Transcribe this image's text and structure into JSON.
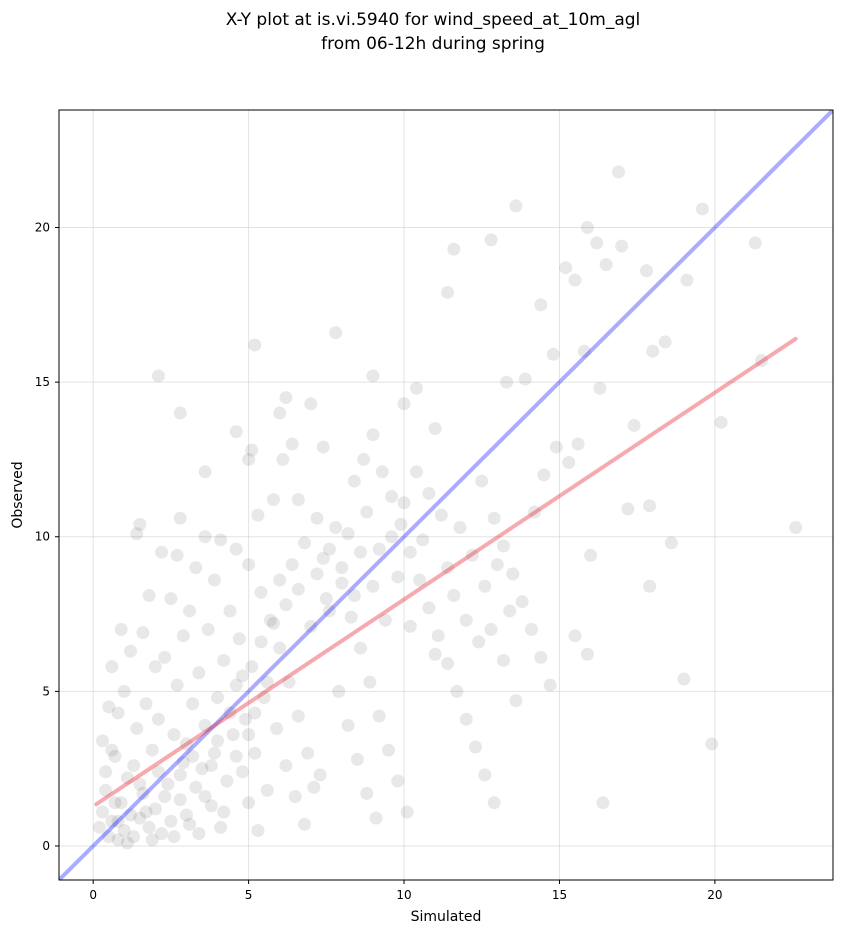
{
  "chart_data": {
    "type": "scatter",
    "title_line1": "X-Y plot at is.vi.5940 for wind_speed_at_10m_agl",
    "title_line2": "from 06-12h during spring",
    "xlabel": "Simulated",
    "ylabel": "Observed",
    "xlim": [
      -1.1,
      23.8
    ],
    "ylim": [
      -1.1,
      23.8
    ],
    "xticks": [
      0,
      5,
      10,
      15,
      20
    ],
    "yticks": [
      0,
      5,
      10,
      15,
      20
    ],
    "xtick_labels": [
      "0",
      "5",
      "10",
      "15",
      "20"
    ],
    "ytick_labels": [
      "0",
      "5",
      "10",
      "15",
      "20"
    ],
    "grid": true,
    "point_color": "#000000",
    "point_alpha": 0.09,
    "identity_line": {
      "from": [
        -1.1,
        -1.1
      ],
      "to": [
        23.8,
        23.8
      ],
      "color": "#0000ff",
      "alpha": 0.33
    },
    "fit_line": {
      "from": [
        0.1,
        1.35
      ],
      "to": [
        22.6,
        16.4
      ],
      "color": "#e8202a",
      "alpha": 0.38
    },
    "points": [
      [
        0.5,
        0.3
      ],
      [
        0.6,
        0.8
      ],
      [
        0.8,
        0.2
      ],
      [
        1.0,
        0.5
      ],
      [
        1.2,
        1.0
      ],
      [
        0.9,
        1.4
      ],
      [
        0.4,
        1.8
      ],
      [
        1.1,
        2.2
      ],
      [
        1.5,
        0.9
      ],
      [
        1.8,
        0.6
      ],
      [
        2.0,
        1.2
      ],
      [
        2.2,
        0.4
      ],
      [
        2.5,
        0.8
      ],
      [
        1.6,
        1.7
      ],
      [
        1.3,
        2.6
      ],
      [
        0.7,
        2.9
      ],
      [
        0.3,
        3.4
      ],
      [
        1.9,
        3.1
      ],
      [
        2.4,
        2.0
      ],
      [
        2.8,
        1.5
      ],
      [
        3.1,
        0.7
      ],
      [
        3.3,
        1.9
      ],
      [
        2.9,
        2.7
      ],
      [
        2.6,
        3.6
      ],
      [
        1.4,
        3.8
      ],
      [
        0.8,
        4.3
      ],
      [
        1.0,
        5.0
      ],
      [
        1.7,
        4.6
      ],
      [
        2.1,
        4.1
      ],
      [
        3.0,
        3.3
      ],
      [
        3.5,
        2.5
      ],
      [
        3.8,
        1.3
      ],
      [
        4.1,
        0.6
      ],
      [
        4.3,
        2.1
      ],
      [
        3.9,
        3.0
      ],
      [
        3.6,
        3.9
      ],
      [
        3.2,
        4.6
      ],
      [
        2.7,
        5.2
      ],
      [
        2.0,
        5.8
      ],
      [
        1.2,
        6.3
      ],
      [
        0.6,
        5.8
      ],
      [
        0.9,
        7.0
      ],
      [
        1.6,
        6.9
      ],
      [
        2.3,
        6.1
      ],
      [
        2.9,
        6.8
      ],
      [
        3.4,
        5.6
      ],
      [
        4.0,
        4.8
      ],
      [
        4.5,
        3.6
      ],
      [
        4.8,
        2.4
      ],
      [
        5.0,
        1.4
      ],
      [
        5.3,
        0.5
      ],
      [
        5.6,
        1.8
      ],
      [
        5.2,
        3.0
      ],
      [
        4.9,
        4.1
      ],
      [
        4.6,
        5.2
      ],
      [
        4.2,
        6.0
      ],
      [
        3.7,
        7.0
      ],
      [
        3.1,
        7.6
      ],
      [
        2.5,
        8.0
      ],
      [
        1.8,
        8.1
      ],
      [
        1.4,
        10.1
      ],
      [
        1.5,
        10.4
      ],
      [
        2.2,
        9.5
      ],
      [
        2.7,
        9.4
      ],
      [
        3.3,
        9.0
      ],
      [
        3.9,
        8.6
      ],
      [
        4.4,
        7.6
      ],
      [
        4.7,
        6.7
      ],
      [
        5.1,
        5.8
      ],
      [
        5.5,
        4.8
      ],
      [
        5.9,
        3.8
      ],
      [
        6.2,
        2.6
      ],
      [
        6.5,
        1.6
      ],
      [
        6.8,
        0.7
      ],
      [
        7.1,
        1.9
      ],
      [
        6.9,
        3.0
      ],
      [
        6.6,
        4.2
      ],
      [
        6.3,
        5.3
      ],
      [
        6.0,
        6.4
      ],
      [
        5.7,
        7.3
      ],
      [
        5.4,
        8.2
      ],
      [
        5.0,
        9.1
      ],
      [
        4.6,
        9.6
      ],
      [
        4.1,
        9.9
      ],
      [
        3.6,
        10.0
      ],
      [
        2.8,
        10.6
      ],
      [
        5.3,
        10.7
      ],
      [
        5.8,
        11.2
      ],
      [
        6.1,
        12.5
      ],
      [
        6.4,
        13.0
      ],
      [
        5.1,
        12.8
      ],
      [
        5.0,
        12.5
      ],
      [
        5.2,
        16.2
      ],
      [
        2.1,
        15.2
      ],
      [
        2.8,
        14.0
      ],
      [
        3.6,
        12.1
      ],
      [
        4.6,
        13.4
      ],
      [
        6.2,
        14.5
      ],
      [
        6.0,
        14.0
      ],
      [
        7.0,
        14.3
      ],
      [
        7.4,
        12.9
      ],
      [
        7.8,
        16.6
      ],
      [
        6.6,
        11.2
      ],
      [
        7.2,
        10.6
      ],
      [
        7.6,
        9.6
      ],
      [
        8.0,
        8.5
      ],
      [
        8.3,
        7.4
      ],
      [
        8.6,
        6.4
      ],
      [
        8.9,
        5.3
      ],
      [
        9.2,
        4.2
      ],
      [
        9.5,
        3.1
      ],
      [
        9.8,
        2.1
      ],
      [
        10.1,
        1.1
      ],
      [
        7.5,
        8.0
      ],
      [
        7.9,
        5.0
      ],
      [
        8.2,
        3.9
      ],
      [
        8.5,
        2.8
      ],
      [
        8.8,
        1.7
      ],
      [
        9.1,
        0.9
      ],
      [
        7.3,
        2.3
      ],
      [
        8.4,
        11.8
      ],
      [
        8.7,
        12.5
      ],
      [
        9.0,
        13.3
      ],
      [
        9.3,
        12.1
      ],
      [
        9.6,
        11.3
      ],
      [
        9.9,
        10.4
      ],
      [
        10.2,
        9.5
      ],
      [
        10.5,
        8.6
      ],
      [
        10.8,
        7.7
      ],
      [
        11.1,
        6.8
      ],
      [
        11.4,
        5.9
      ],
      [
        11.7,
        5.0
      ],
      [
        12.0,
        4.1
      ],
      [
        12.3,
        3.2
      ],
      [
        12.6,
        2.3
      ],
      [
        12.9,
        1.4
      ],
      [
        9.0,
        15.2
      ],
      [
        10.0,
        14.3
      ],
      [
        10.4,
        14.8
      ],
      [
        11.0,
        13.5
      ],
      [
        11.4,
        17.9
      ],
      [
        11.6,
        19.3
      ],
      [
        12.8,
        19.6
      ],
      [
        13.3,
        15.0
      ],
      [
        13.6,
        20.7
      ],
      [
        12.5,
        11.8
      ],
      [
        12.9,
        10.6
      ],
      [
        13.2,
        9.7
      ],
      [
        13.5,
        8.8
      ],
      [
        13.8,
        7.9
      ],
      [
        14.1,
        7.0
      ],
      [
        14.4,
        6.1
      ],
      [
        14.7,
        5.2
      ],
      [
        14.2,
        10.8
      ],
      [
        14.5,
        12.0
      ],
      [
        14.9,
        12.9
      ],
      [
        15.3,
        12.4
      ],
      [
        15.6,
        13.0
      ],
      [
        15.2,
        18.7
      ],
      [
        15.5,
        18.3
      ],
      [
        15.9,
        20.0
      ],
      [
        16.2,
        19.5
      ],
      [
        16.5,
        18.8
      ],
      [
        16.9,
        21.8
      ],
      [
        17.0,
        19.4
      ],
      [
        17.8,
        18.6
      ],
      [
        18.0,
        16.0
      ],
      [
        17.4,
        13.6
      ],
      [
        17.2,
        10.9
      ],
      [
        17.9,
        11.0
      ],
      [
        17.9,
        8.4
      ],
      [
        18.6,
        9.8
      ],
      [
        19.0,
        5.4
      ],
      [
        19.9,
        3.3
      ],
      [
        20.2,
        13.7
      ],
      [
        19.6,
        20.6
      ],
      [
        21.3,
        19.5
      ],
      [
        21.5,
        15.7
      ],
      [
        22.6,
        10.3
      ],
      [
        19.1,
        18.3
      ],
      [
        18.4,
        16.3
      ],
      [
        16.4,
        1.4
      ],
      [
        15.9,
        6.2
      ],
      [
        15.5,
        6.8
      ],
      [
        16.0,
        9.4
      ],
      [
        16.3,
        14.8
      ],
      [
        15.8,
        16.0
      ],
      [
        14.8,
        15.9
      ],
      [
        14.4,
        17.5
      ],
      [
        13.9,
        15.1
      ],
      [
        1.1,
        0.1
      ],
      [
        0.2,
        0.6
      ],
      [
        0.3,
        1.1
      ],
      [
        0.4,
        2.4
      ],
      [
        0.5,
        4.5
      ],
      [
        0.6,
        3.1
      ],
      [
        0.7,
        1.4
      ],
      [
        0.8,
        0.8
      ],
      [
        1.3,
        0.3
      ],
      [
        1.5,
        2.0
      ],
      [
        1.7,
        1.1
      ],
      [
        1.9,
        0.2
      ],
      [
        2.1,
        2.4
      ],
      [
        2.3,
        1.6
      ],
      [
        2.6,
        0.3
      ],
      [
        2.8,
        2.3
      ],
      [
        3.0,
        1.0
      ],
      [
        3.2,
        2.9
      ],
      [
        3.4,
        0.4
      ],
      [
        3.6,
        1.6
      ],
      [
        3.8,
        2.6
      ],
      [
        4.0,
        3.4
      ],
      [
        4.2,
        1.1
      ],
      [
        4.4,
        4.3
      ],
      [
        4.6,
        2.9
      ],
      [
        4.8,
        5.5
      ],
      [
        5.0,
        3.6
      ],
      [
        5.2,
        4.3
      ],
      [
        5.4,
        6.6
      ],
      [
        5.6,
        5.3
      ],
      [
        5.8,
        7.2
      ],
      [
        6.0,
        8.6
      ],
      [
        6.2,
        7.8
      ],
      [
        6.4,
        9.1
      ],
      [
        6.6,
        8.3
      ],
      [
        6.8,
        9.8
      ],
      [
        7.0,
        7.1
      ],
      [
        7.2,
        8.8
      ],
      [
        7.4,
        9.3
      ],
      [
        7.6,
        7.6
      ],
      [
        7.8,
        10.3
      ],
      [
        8.0,
        9.0
      ],
      [
        8.2,
        10.1
      ],
      [
        8.4,
        8.1
      ],
      [
        8.6,
        9.5
      ],
      [
        8.8,
        10.8
      ],
      [
        9.0,
        8.4
      ],
      [
        9.2,
        9.6
      ],
      [
        9.4,
        7.3
      ],
      [
        9.6,
        10.0
      ],
      [
        9.8,
        8.7
      ],
      [
        10.0,
        11.1
      ],
      [
        10.2,
        7.1
      ],
      [
        10.4,
        12.1
      ],
      [
        10.6,
        9.9
      ],
      [
        10.8,
        11.4
      ],
      [
        11.0,
        6.2
      ],
      [
        11.2,
        10.7
      ],
      [
        11.4,
        9.0
      ],
      [
        11.6,
        8.1
      ],
      [
        11.8,
        10.3
      ],
      [
        12.0,
        7.3
      ],
      [
        12.2,
        9.4
      ],
      [
        12.4,
        6.6
      ],
      [
        12.6,
        8.4
      ],
      [
        12.8,
        7.0
      ],
      [
        13.0,
        9.1
      ],
      [
        13.2,
        6.0
      ],
      [
        13.4,
        7.6
      ],
      [
        13.6,
        4.7
      ]
    ]
  }
}
